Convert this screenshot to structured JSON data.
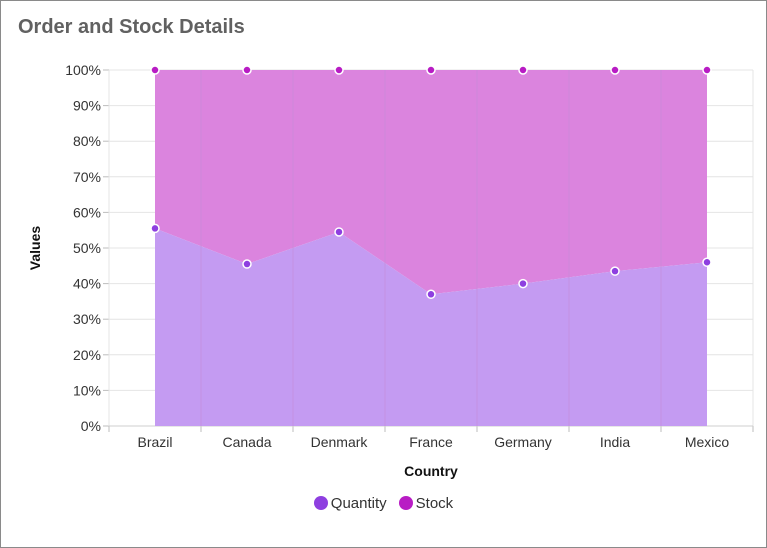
{
  "title": "Order and Stock Details",
  "colors": {
    "quantity_fill": "#c49bf2",
    "quantity_marker": "#8e3fe0",
    "stock_fill": "#db84de",
    "stock_marker": "#b81cc4",
    "grid": "#e4e4e4",
    "vline": "#c28ad6"
  },
  "chart_data": {
    "type": "area",
    "stacking": "100%",
    "title": "Order and Stock Details",
    "xlabel": "Country",
    "ylabel": "Values",
    "categories": [
      "Brazil",
      "Canada",
      "Denmark",
      "France",
      "Germany",
      "India",
      "Mexico"
    ],
    "y_ticks": [
      "0%",
      "10%",
      "20%",
      "30%",
      "40%",
      "50%",
      "60%",
      "70%",
      "80%",
      "90%",
      "100%"
    ],
    "ylim": [
      0,
      100
    ],
    "grid": true,
    "legend_position": "bottom",
    "series": [
      {
        "name": "Quantity",
        "values": [
          55.5,
          45.5,
          54.5,
          37,
          40,
          43.5,
          46
        ]
      },
      {
        "name": "Stock",
        "values": [
          44.5,
          54.5,
          45.5,
          63,
          60,
          56.5,
          54
        ]
      }
    ]
  },
  "legend": [
    {
      "label": "Quantity",
      "color": "#8e3fe0"
    },
    {
      "label": "Stock",
      "color": "#b81cc4"
    }
  ]
}
